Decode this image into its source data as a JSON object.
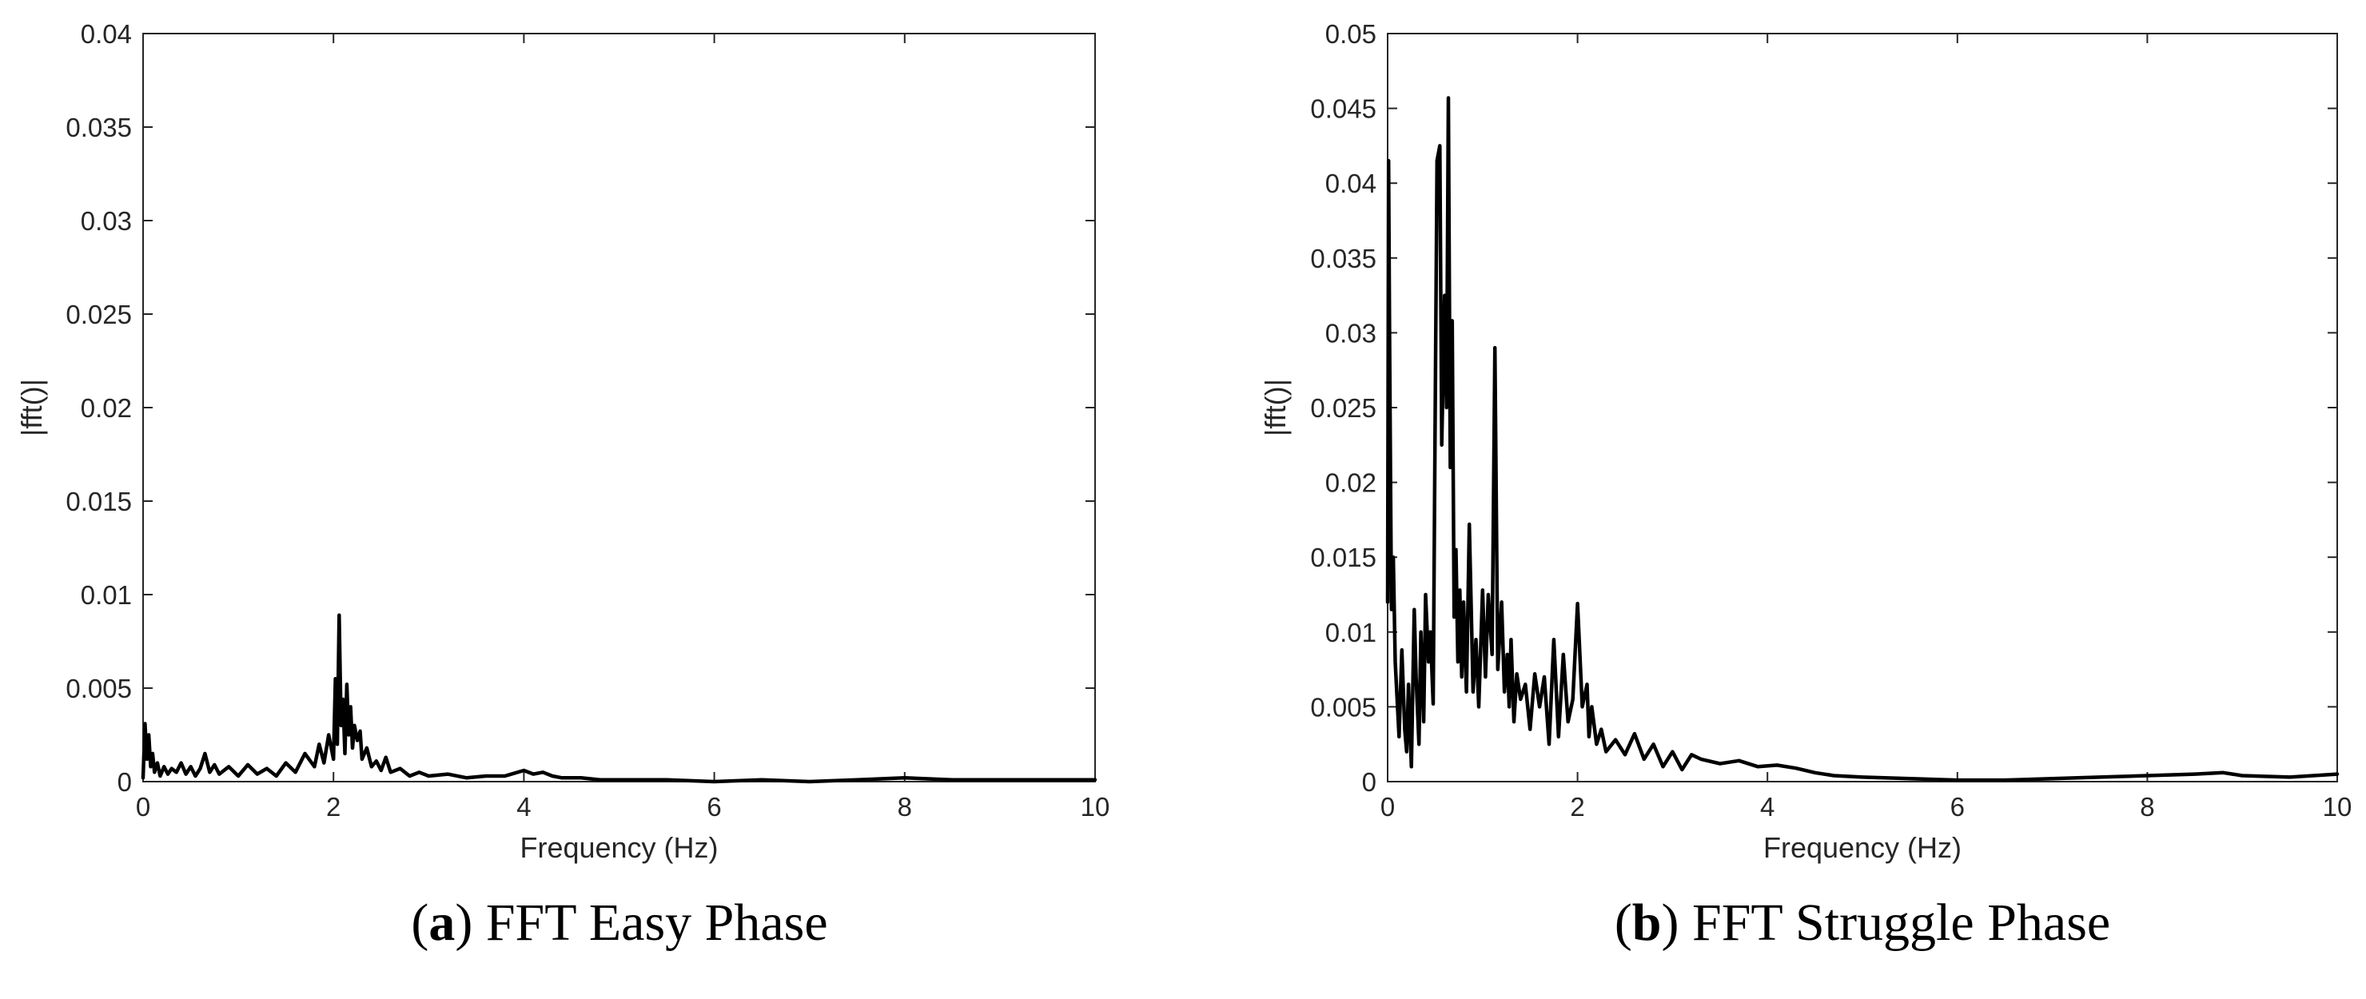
{
  "chart_data": [
    {
      "type": "line",
      "title": "",
      "xlabel": "Frequency (Hz)",
      "ylabel": "|fft()|",
      "xlim": [
        0,
        10
      ],
      "ylim": [
        0,
        0.04
      ],
      "xticks": [
        0,
        2,
        4,
        6,
        8,
        10
      ],
      "xtick_labels": [
        "0",
        "2",
        "4",
        "6",
        "8",
        "10"
      ],
      "yticks": [
        0,
        0.005,
        0.01,
        0.015,
        0.02,
        0.025,
        0.03,
        0.035,
        0.04
      ],
      "ytick_labels": [
        "0",
        "0.005",
        "0.01",
        "0.015",
        "0.02",
        "0.025",
        "0.03",
        "0.035",
        "0.04"
      ],
      "grid": false,
      "caption_letter": "a",
      "caption_open": "(",
      "caption_close": ")",
      "caption_text": " FFT Easy Phase",
      "series": [
        {
          "color": "#000000",
          "x": [
            0,
            0.02,
            0.04,
            0.06,
            0.08,
            0.1,
            0.12,
            0.15,
            0.18,
            0.22,
            0.26,
            0.3,
            0.35,
            0.4,
            0.45,
            0.5,
            0.55,
            0.6,
            0.65,
            0.7,
            0.75,
            0.8,
            0.9,
            1.0,
            1.1,
            1.2,
            1.3,
            1.4,
            1.5,
            1.6,
            1.7,
            1.8,
            1.85,
            1.9,
            1.95,
            2.0,
            2.02,
            2.04,
            2.06,
            2.08,
            2.1,
            2.12,
            2.14,
            2.16,
            2.18,
            2.2,
            2.22,
            2.25,
            2.28,
            2.3,
            2.35,
            2.4,
            2.45,
            2.5,
            2.55,
            2.6,
            2.7,
            2.8,
            2.9,
            3.0,
            3.2,
            3.4,
            3.6,
            3.8,
            4.0,
            4.1,
            4.2,
            4.3,
            4.4,
            4.6,
            4.8,
            5.0,
            5.5,
            6.0,
            6.5,
            7.0,
            7.5,
            8.0,
            8.5,
            9.0,
            9.5,
            10.0
          ],
          "y": [
            0.0002,
            0.0031,
            0.0012,
            0.0025,
            0.0008,
            0.0015,
            0.0005,
            0.001,
            0.0003,
            0.0008,
            0.0004,
            0.0007,
            0.0005,
            0.001,
            0.0004,
            0.0008,
            0.0003,
            0.0007,
            0.0015,
            0.0005,
            0.0009,
            0.0004,
            0.0008,
            0.0003,
            0.0009,
            0.0004,
            0.0007,
            0.0003,
            0.001,
            0.0005,
            0.0015,
            0.0008,
            0.002,
            0.001,
            0.0025,
            0.0012,
            0.0055,
            0.002,
            0.0089,
            0.003,
            0.0044,
            0.0015,
            0.0052,
            0.0025,
            0.004,
            0.0018,
            0.003,
            0.0022,
            0.0027,
            0.0012,
            0.0018,
            0.0008,
            0.0011,
            0.0006,
            0.0013,
            0.0005,
            0.0007,
            0.0003,
            0.0005,
            0.0003,
            0.0004,
            0.0002,
            0.0003,
            0.0003,
            0.0006,
            0.0004,
            0.0005,
            0.0003,
            0.0002,
            0.0002,
            0.0001,
            0.0001,
            0.0001,
            0.0,
            0.0001,
            0.0,
            0.0001,
            0.0002,
            0.0001,
            0.0001,
            0.0001,
            0.0001
          ]
        }
      ]
    },
    {
      "type": "line",
      "title": "",
      "xlabel": "Frequency (Hz)",
      "ylabel": "|fft()|",
      "xlim": [
        0,
        10
      ],
      "ylim": [
        0,
        0.05
      ],
      "xticks": [
        0,
        2,
        4,
        6,
        8,
        10
      ],
      "xtick_labels": [
        "0",
        "2",
        "4",
        "6",
        "8",
        "10"
      ],
      "yticks": [
        0,
        0.005,
        0.01,
        0.015,
        0.02,
        0.025,
        0.03,
        0.035,
        0.04,
        0.045,
        0.05
      ],
      "ytick_labels": [
        "0",
        "0.005",
        "0.01",
        "0.015",
        "0.02",
        "0.025",
        "0.03",
        "0.035",
        "0.04",
        "0.045",
        "0.05"
      ],
      "grid": false,
      "caption_letter": "b",
      "caption_open": "(",
      "caption_close": ")",
      "caption_text": " FFT Struggle Phase",
      "series": [
        {
          "color": "#000000",
          "x": [
            0,
            0.01,
            0.02,
            0.03,
            0.04,
            0.06,
            0.08,
            0.1,
            0.12,
            0.15,
            0.18,
            0.2,
            0.22,
            0.25,
            0.28,
            0.3,
            0.33,
            0.35,
            0.38,
            0.4,
            0.43,
            0.45,
            0.48,
            0.5,
            0.52,
            0.55,
            0.57,
            0.6,
            0.62,
            0.64,
            0.66,
            0.68,
            0.7,
            0.72,
            0.74,
            0.76,
            0.78,
            0.8,
            0.83,
            0.86,
            0.9,
            0.93,
            0.96,
            1.0,
            1.03,
            1.06,
            1.1,
            1.13,
            1.16,
            1.2,
            1.23,
            1.26,
            1.28,
            1.3,
            1.33,
            1.36,
            1.4,
            1.45,
            1.5,
            1.55,
            1.6,
            1.65,
            1.7,
            1.75,
            1.8,
            1.85,
            1.9,
            1.95,
            2.0,
            2.05,
            2.1,
            2.12,
            2.15,
            2.2,
            2.25,
            2.3,
            2.4,
            2.5,
            2.6,
            2.7,
            2.8,
            2.9,
            3.0,
            3.1,
            3.2,
            3.3,
            3.5,
            3.7,
            3.9,
            4.1,
            4.3,
            4.5,
            4.7,
            5.0,
            5.5,
            6.0,
            6.5,
            7.0,
            7.5,
            8.0,
            8.5,
            8.8,
            9.0,
            9.5,
            10.0
          ],
          "y": [
            0.012,
            0.0415,
            0.03,
            0.0205,
            0.0115,
            0.015,
            0.008,
            0.0055,
            0.003,
            0.0088,
            0.0035,
            0.002,
            0.0065,
            0.001,
            0.0115,
            0.007,
            0.0025,
            0.01,
            0.004,
            0.0125,
            0.008,
            0.01,
            0.0052,
            0.0238,
            0.0415,
            0.0425,
            0.0225,
            0.0325,
            0.025,
            0.0457,
            0.021,
            0.0308,
            0.011,
            0.0155,
            0.008,
            0.0128,
            0.007,
            0.012,
            0.006,
            0.0172,
            0.006,
            0.0095,
            0.005,
            0.0128,
            0.007,
            0.0125,
            0.0085,
            0.029,
            0.0075,
            0.012,
            0.006,
            0.0085,
            0.005,
            0.0095,
            0.004,
            0.0072,
            0.0055,
            0.0065,
            0.0035,
            0.0072,
            0.005,
            0.007,
            0.0025,
            0.0095,
            0.003,
            0.0085,
            0.004,
            0.0055,
            0.0119,
            0.005,
            0.0065,
            0.003,
            0.005,
            0.0025,
            0.0035,
            0.002,
            0.0028,
            0.0018,
            0.0032,
            0.0015,
            0.0025,
            0.001,
            0.002,
            0.0008,
            0.0018,
            0.0015,
            0.0012,
            0.0014,
            0.001,
            0.0011,
            0.0009,
            0.0006,
            0.0004,
            0.0003,
            0.0002,
            0.0001,
            0.0001,
            0.0002,
            0.0003,
            0.0004,
            0.0005,
            0.0006,
            0.0004,
            0.0003,
            0.0005
          ]
        }
      ]
    }
  ]
}
